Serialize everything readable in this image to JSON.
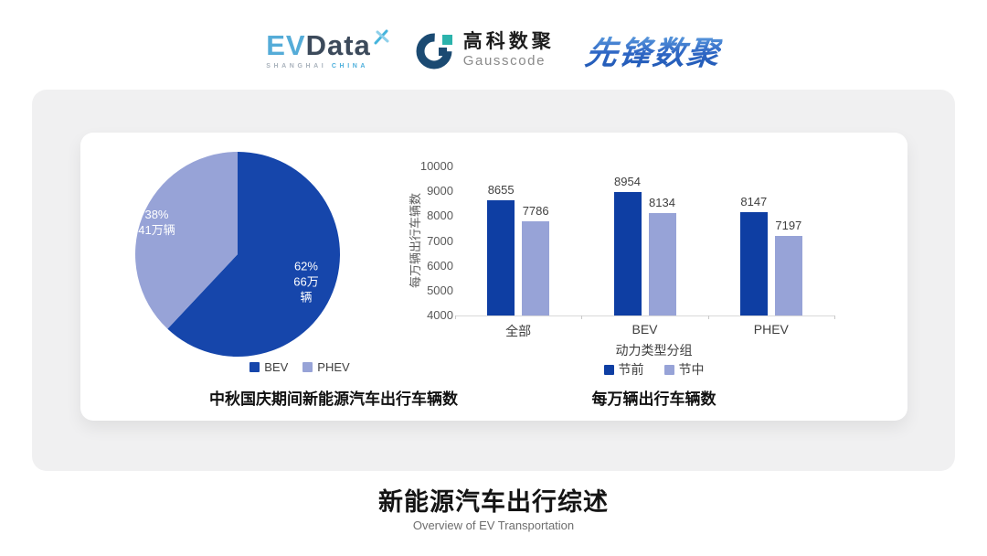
{
  "header": {
    "evdata": {
      "name_ev": "EV",
      "name_data": "Data",
      "tagline_left": "SHANGHAI",
      "tagline_right": "CHINA"
    },
    "gausscode": {
      "cn_name": "高科数聚",
      "en_name": "Gausscode"
    },
    "pioneer": {
      "name": "先锋数聚"
    }
  },
  "chart_data": [
    {
      "type": "pie",
      "title": "中秋国庆期间新能源汽车出行车辆数",
      "legend_position": "bottom",
      "start_angle": "top, clockwise",
      "slices": [
        {
          "label": "BEV",
          "percent": 62,
          "percent_label": "62%",
          "amount_label": "66万辆",
          "color": "#1646AB",
          "label_color": "#FFFFFF"
        },
        {
          "label": "PHEV",
          "percent": 38,
          "percent_label": "38%",
          "amount_label": "41万辆",
          "color": "#97A3D7",
          "label_color": "#FFFFFF"
        }
      ]
    },
    {
      "type": "bar",
      "title": "每万辆出行车辆数",
      "xlabel": "动力类型分组",
      "ylabel": "每万辆出行车辆数",
      "categories": [
        "全部",
        "BEV",
        "PHEV"
      ],
      "series": [
        {
          "name": "节前",
          "color": "#0E3EA3",
          "values": [
            8655,
            8954,
            8147
          ]
        },
        {
          "name": "节中",
          "color": "#97A3D7",
          "values": [
            7786,
            8134,
            7197
          ]
        }
      ],
      "ylim": [
        4000,
        10000
      ],
      "ytick_step": 1000,
      "grid": false,
      "legend_position": "bottom",
      "axis_color": "#D9D9D9",
      "tick_label_color": "#595959",
      "value_label_color": "#3F3F3F"
    }
  ],
  "footer": {
    "title": "新能源汽车出行综述",
    "subtitle": "Overview of EV Transportation"
  }
}
